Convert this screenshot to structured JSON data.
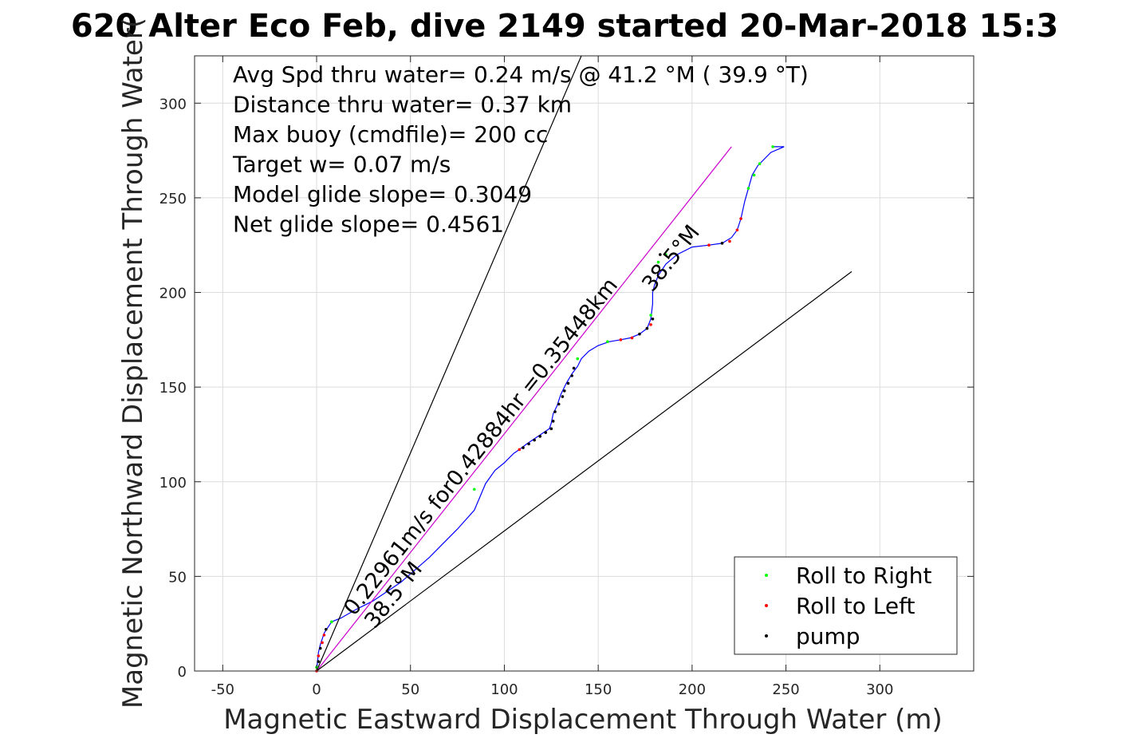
{
  "chart_data": {
    "type": "line",
    "title": "620 Alter Eco Feb, dive 2149 started 20-Mar-2018 15:3",
    "xlabel": "Magnetic Eastward Displacement Through Water (m)",
    "ylabel": "Magnetic Northward Displacement Through Water(",
    "xlim": [
      -65,
      350
    ],
    "ylim": [
      0,
      325
    ],
    "xticks": [
      -50,
      0,
      50,
      100,
      150,
      200,
      250,
      300
    ],
    "yticks": [
      0,
      50,
      100,
      150,
      200,
      250,
      300
    ],
    "xtick_labels": [
      "-50",
      "0",
      "50",
      "100",
      "150",
      "200",
      "250",
      "300"
    ],
    "ytick_labels": [
      "0",
      "50",
      "100",
      "150",
      "200",
      "250",
      "300"
    ],
    "grid": true,
    "legend_position": "bottom-right",
    "stats": [
      "Avg Spd thru water=  0.24 m/s @  41.2 °M ( 39.9 °T)",
      "Distance thru water=  0.37 km",
      "Max buoy (cmdfile)= 200 cc",
      "Target w= 0.07 m/s",
      "Model glide slope= 0.3049",
      "Net glide slope= 0.4561"
    ],
    "annotations": {
      "speed_text": "0.22961m/s for0.42884hr =0.35448km",
      "heading_low": "38.5°M",
      "heading_high": "38.5°M"
    },
    "legend": [
      {
        "label": "Roll to Right",
        "color": "#00ff00"
      },
      {
        "label": "Roll to Left",
        "color": "#ff0000"
      },
      {
        "label": "pump",
        "color": "#000000"
      }
    ],
    "series": [
      {
        "style": "line",
        "color": "#0000ff",
        "points": [
          [
            0,
            0
          ],
          [
            0.5,
            5
          ],
          [
            1,
            10
          ],
          [
            2,
            14
          ],
          [
            3,
            17
          ],
          [
            4,
            20
          ],
          [
            6,
            23
          ],
          [
            8,
            26
          ],
          [
            13,
            28
          ],
          [
            20,
            32
          ],
          [
            30,
            37
          ],
          [
            45,
            47
          ],
          [
            60,
            60
          ],
          [
            75,
            75
          ],
          [
            84,
            85
          ],
          [
            90,
            99
          ],
          [
            95,
            106
          ],
          [
            100,
            110
          ],
          [
            105,
            115
          ],
          [
            108,
            117
          ],
          [
            112,
            120
          ],
          [
            118,
            124
          ],
          [
            124,
            128
          ],
          [
            125,
            131
          ],
          [
            126,
            136
          ],
          [
            128,
            140
          ],
          [
            130,
            146
          ],
          [
            133,
            152
          ],
          [
            136,
            157
          ],
          [
            139,
            161
          ],
          [
            141,
            165
          ],
          [
            145,
            169
          ],
          [
            150,
            172
          ],
          [
            156,
            174
          ],
          [
            162,
            175
          ],
          [
            167,
            176
          ],
          [
            172,
            178
          ],
          [
            176,
            181
          ],
          [
            178,
            186
          ],
          [
            179,
            194
          ],
          [
            179,
            200
          ],
          [
            180,
            204
          ],
          [
            182,
            209
          ],
          [
            186,
            215
          ],
          [
            192,
            220
          ],
          [
            200,
            224
          ],
          [
            209,
            225
          ],
          [
            216,
            226
          ],
          [
            221,
            229
          ],
          [
            224,
            233
          ],
          [
            226,
            239
          ],
          [
            228,
            248
          ],
          [
            230,
            255
          ],
          [
            232,
            262
          ],
          [
            235,
            267
          ],
          [
            238,
            270
          ],
          [
            242,
            274
          ],
          [
            249,
            277
          ],
          [
            243,
            277
          ]
        ]
      },
      {
        "style": "line",
        "color": "#cc00cc",
        "points": [
          [
            0,
            0
          ],
          [
            221,
            277
          ]
        ]
      },
      {
        "style": "line",
        "color": "#000000",
        "points": [
          [
            0,
            0
          ],
          [
            141,
            325
          ]
        ]
      },
      {
        "style": "line",
        "color": "#000000",
        "points": [
          [
            0,
            0
          ],
          [
            285,
            211
          ]
        ]
      },
      {
        "style": "markers",
        "name": "Roll to Right",
        "color": "#00ff00",
        "points": [
          [
            0,
            2
          ],
          [
            8,
            26
          ],
          [
            84,
            96
          ],
          [
            139,
            165
          ],
          [
            155,
            174
          ],
          [
            178,
            188
          ],
          [
            182,
            216
          ],
          [
            186,
            220
          ],
          [
            230,
            255
          ],
          [
            233,
            262
          ],
          [
            236,
            268
          ],
          [
            243,
            277
          ]
        ]
      },
      {
        "style": "markers",
        "name": "Roll to Left",
        "color": "#ff0000",
        "points": [
          [
            0,
            0
          ],
          [
            1,
            8
          ],
          [
            3,
            15
          ],
          [
            4,
            19
          ],
          [
            108,
            117
          ],
          [
            162,
            175
          ],
          [
            168,
            176
          ],
          [
            178,
            183
          ],
          [
            209,
            225
          ],
          [
            220,
            227
          ],
          [
            224,
            233
          ],
          [
            226,
            239
          ]
        ]
      },
      {
        "style": "markers",
        "name": "pump",
        "color": "#000000",
        "points": [
          [
            1,
            5
          ],
          [
            2,
            12
          ],
          [
            5,
            22
          ],
          [
            110,
            118
          ],
          [
            113,
            120
          ],
          [
            116,
            122
          ],
          [
            119,
            124
          ],
          [
            122,
            126
          ],
          [
            125,
            128
          ],
          [
            126,
            132
          ],
          [
            127,
            137
          ],
          [
            129,
            141
          ],
          [
            131,
            145
          ],
          [
            132,
            148
          ],
          [
            134,
            152
          ],
          [
            136,
            156
          ],
          [
            137,
            160
          ],
          [
            172,
            178
          ],
          [
            176,
            181
          ],
          [
            179,
            186
          ],
          [
            183,
            220
          ],
          [
            216,
            226
          ]
        ]
      }
    ]
  }
}
